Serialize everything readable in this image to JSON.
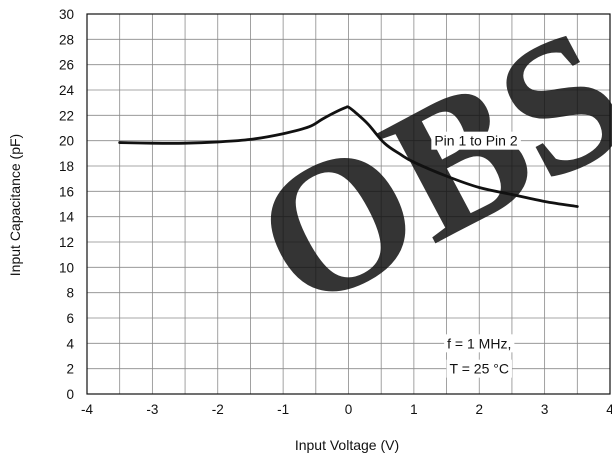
{
  "chart_data": {
    "type": "line",
    "title": "",
    "xlabel": "Input Voltage (V)",
    "ylabel": "Input Capacitance (pF)",
    "xlim": [
      -4,
      4
    ],
    "ylim": [
      0,
      30
    ],
    "x_ticks": [
      -4,
      -3,
      -2,
      -1,
      0,
      1,
      2,
      3,
      4
    ],
    "y_ticks": [
      0,
      2,
      4,
      6,
      8,
      10,
      12,
      14,
      16,
      18,
      20,
      22,
      24,
      26,
      28,
      30
    ],
    "grid": true,
    "series": [
      {
        "name": "Pin 1 to Pin 2",
        "x": [
          -3.5,
          -3.0,
          -2.5,
          -2.0,
          -1.5,
          -1.0,
          -0.6,
          -0.4,
          -0.2,
          -0.05,
          0.0,
          0.1,
          0.3,
          0.55,
          0.8,
          1.0,
          1.5,
          2.0,
          2.5,
          3.0,
          3.5
        ],
        "y": [
          19.85,
          19.8,
          19.8,
          19.9,
          20.1,
          20.55,
          21.1,
          21.7,
          22.25,
          22.6,
          22.65,
          22.25,
          21.3,
          19.8,
          18.9,
          18.3,
          17.2,
          16.3,
          15.75,
          15.2,
          14.8
        ]
      }
    ],
    "annotations": [
      {
        "text": "Pin 1 to Pin 2",
        "x": 1.95,
        "y": 20.0
      },
      {
        "text": "f = 1 MHz,",
        "x": 2.0,
        "y": 4.0
      },
      {
        "text": "T = 25 °C",
        "x": 2.0,
        "y": 2.0
      }
    ],
    "line_color": "#111111",
    "grid_color": "#8a8a8a"
  },
  "watermark": {
    "text": "OBS",
    "color": "#e48a78"
  }
}
